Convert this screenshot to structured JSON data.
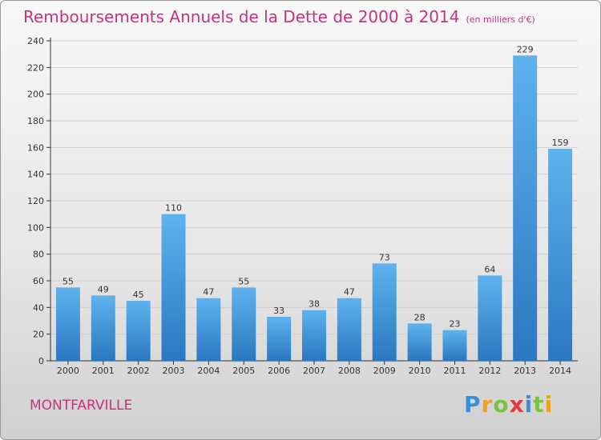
{
  "chart_data": {
    "type": "bar",
    "title": "Remboursements Annuels de la Dette de 2000 à 2014",
    "subtitle": "(en milliers d'€)",
    "categories": [
      "2000",
      "2001",
      "2002",
      "2003",
      "2004",
      "2005",
      "2006",
      "2007",
      "2008",
      "2009",
      "2010",
      "2011",
      "2012",
      "2013",
      "2014"
    ],
    "values": [
      55,
      49,
      45,
      110,
      47,
      55,
      33,
      38,
      47,
      73,
      28,
      23,
      64,
      229,
      159
    ],
    "ylim": [
      0,
      240
    ],
    "yticks": [
      0,
      20,
      40,
      60,
      80,
      100,
      120,
      140,
      160,
      180,
      200,
      220,
      240
    ],
    "grid": true,
    "bar_color": "#3a8fd8"
  },
  "footer": {
    "town": "MONTFARVILLE",
    "logo_letters": [
      "P",
      "r",
      "o",
      "x",
      "i",
      "t",
      "i"
    ],
    "logo_colors": [
      "#3a8fd8",
      "#f0a020",
      "#7cc242",
      "#e03a3a",
      "#3a8fd8",
      "#7cc242",
      "#f0a020"
    ]
  }
}
